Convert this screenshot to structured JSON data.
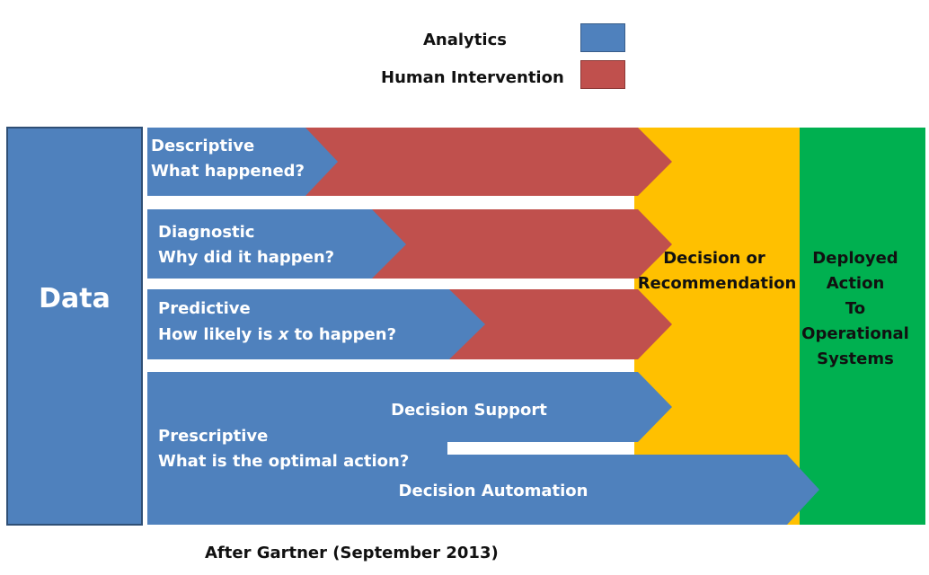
{
  "legend": {
    "analytics": "Analytics",
    "human_intervention": "Human Intervention"
  },
  "data_box": {
    "label": "Data"
  },
  "rows": {
    "descriptive": {
      "title": "Descriptive",
      "question": "What happened?"
    },
    "diagnostic": {
      "title": "Diagnostic",
      "question": "Why did it happen?"
    },
    "predictive": {
      "title": "Predictive",
      "question_pre": "How likely is ",
      "question_var": "x",
      "question_post": " to happen?"
    },
    "prescriptive": {
      "title": "Prescriptive",
      "question": "What is the optimal action?"
    }
  },
  "decision_support": "Decision Support",
  "decision_automation": "Decision Automation",
  "decision_column": {
    "line1": "Decision or",
    "line2": "Recommendation"
  },
  "deployed_column": {
    "line1": "Deployed",
    "line2": "Action",
    "line3": "To",
    "line4": "Operational",
    "line5": "Systems"
  },
  "caption": "After Gartner  (September 2013)",
  "colors": {
    "analytics": "#4f81bd",
    "human_intervention": "#c0504d",
    "decision": "#ffc000",
    "deployed": "#00b050"
  }
}
